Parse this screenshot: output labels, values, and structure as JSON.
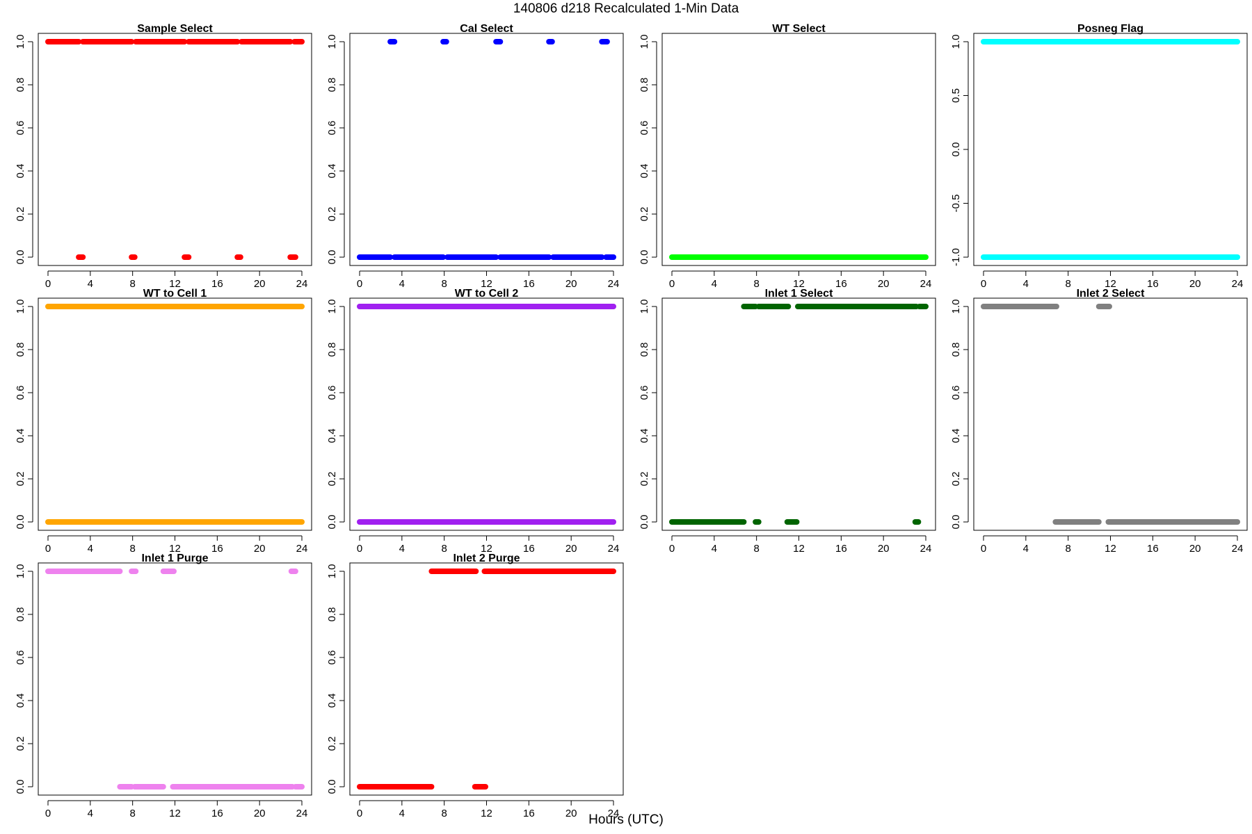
{
  "figure": {
    "title": "140806   d218   Recalculated 1-Min Data",
    "xlabel": "Hours (UTC)"
  },
  "chart_data": [
    {
      "type": "scatter",
      "title": "Sample Select",
      "color": "#FF0000",
      "xlim": [
        0,
        24
      ],
      "ylim": [
        0,
        1
      ],
      "xticks": [
        0,
        4,
        8,
        12,
        16,
        20,
        24
      ],
      "yticks": [
        0,
        0.2,
        0.4,
        0.6,
        0.8,
        1
      ],
      "ytick_labels": [
        "0.0",
        "0.2",
        "0.4",
        "0.6",
        "0.8",
        "1.0"
      ],
      "segments": [
        {
          "y": 1,
          "x": [
            0.0,
            2.9
          ]
        },
        {
          "y": 1,
          "x": [
            3.3,
            7.9
          ]
        },
        {
          "y": 1,
          "x": [
            8.3,
            12.9
          ]
        },
        {
          "y": 1,
          "x": [
            13.3,
            17.9
          ]
        },
        {
          "y": 1,
          "x": [
            18.3,
            22.9
          ]
        },
        {
          "y": 1,
          "x": [
            23.3,
            24.0
          ]
        },
        {
          "y": 0,
          "x": [
            2.9,
            3.3
          ]
        },
        {
          "y": 0,
          "x": [
            7.9,
            8.2
          ]
        },
        {
          "y": 0,
          "x": [
            12.9,
            13.3
          ]
        },
        {
          "y": 0,
          "x": [
            17.9,
            18.2
          ]
        },
        {
          "y": 0,
          "x": [
            22.9,
            23.4
          ]
        }
      ]
    },
    {
      "type": "scatter",
      "title": "Cal Select",
      "color": "#0000FF",
      "xlim": [
        0,
        24
      ],
      "ylim": [
        0,
        1
      ],
      "xticks": [
        0,
        4,
        8,
        12,
        16,
        20,
        24
      ],
      "yticks": [
        0,
        0.2,
        0.4,
        0.6,
        0.8,
        1
      ],
      "ytick_labels": [
        "0.0",
        "0.2",
        "0.4",
        "0.6",
        "0.8",
        "1.0"
      ],
      "segments": [
        {
          "y": 1,
          "x": [
            2.9,
            3.3
          ]
        },
        {
          "y": 1,
          "x": [
            7.9,
            8.2
          ]
        },
        {
          "y": 1,
          "x": [
            12.9,
            13.3
          ]
        },
        {
          "y": 1,
          "x": [
            17.9,
            18.2
          ]
        },
        {
          "y": 1,
          "x": [
            22.9,
            23.4
          ]
        },
        {
          "y": 0,
          "x": [
            0.0,
            2.9
          ]
        },
        {
          "y": 0,
          "x": [
            3.3,
            7.9
          ]
        },
        {
          "y": 0,
          "x": [
            8.3,
            12.9
          ]
        },
        {
          "y": 0,
          "x": [
            13.3,
            17.9
          ]
        },
        {
          "y": 0,
          "x": [
            18.3,
            22.9
          ]
        },
        {
          "y": 0,
          "x": [
            23.3,
            24.0
          ]
        }
      ]
    },
    {
      "type": "scatter",
      "title": "WT Select",
      "color": "#00FF00",
      "xlim": [
        0,
        24
      ],
      "ylim": [
        0,
        1
      ],
      "xticks": [
        0,
        4,
        8,
        12,
        16,
        20,
        24
      ],
      "yticks": [
        0,
        0.2,
        0.4,
        0.6,
        0.8,
        1
      ],
      "ytick_labels": [
        "0.0",
        "0.2",
        "0.4",
        "0.6",
        "0.8",
        "1.0"
      ],
      "segments": [
        {
          "y": 0,
          "x": [
            0.0,
            24.0
          ]
        }
      ]
    },
    {
      "type": "scatter",
      "title": "Posneg Flag",
      "color": "#00FFFF",
      "xlim": [
        0,
        24
      ],
      "ylim": [
        -1,
        1
      ],
      "xticks": [
        0,
        4,
        8,
        12,
        16,
        20,
        24
      ],
      "yticks": [
        -1,
        -0.5,
        0,
        0.5,
        1
      ],
      "ytick_labels": [
        "-1.0",
        "-0.5",
        "0.0",
        "0.5",
        "1.0"
      ],
      "segments": [
        {
          "y": 1,
          "x": [
            0.0,
            24.0
          ]
        },
        {
          "y": -1,
          "x": [
            0.0,
            24.0
          ]
        }
      ]
    },
    {
      "type": "scatter",
      "title": "WT to Cell 1",
      "color": "#FFA500",
      "xlim": [
        0,
        24
      ],
      "ylim": [
        0,
        1
      ],
      "xticks": [
        0,
        4,
        8,
        12,
        16,
        20,
        24
      ],
      "yticks": [
        0,
        0.2,
        0.4,
        0.6,
        0.8,
        1
      ],
      "ytick_labels": [
        "0.0",
        "0.2",
        "0.4",
        "0.6",
        "0.8",
        "1.0"
      ],
      "segments": [
        {
          "y": 1,
          "x": [
            0.0,
            24.0
          ]
        },
        {
          "y": 0,
          "x": [
            0.0,
            24.0
          ]
        }
      ]
    },
    {
      "type": "scatter",
      "title": "WT to Cell 2",
      "color": "#A020F0",
      "xlim": [
        0,
        24
      ],
      "ylim": [
        0,
        1
      ],
      "xticks": [
        0,
        4,
        8,
        12,
        16,
        20,
        24
      ],
      "yticks": [
        0,
        0.2,
        0.4,
        0.6,
        0.8,
        1
      ],
      "ytick_labels": [
        "0.0",
        "0.2",
        "0.4",
        "0.6",
        "0.8",
        "1.0"
      ],
      "segments": [
        {
          "y": 1,
          "x": [
            0.0,
            24.0
          ]
        },
        {
          "y": 0,
          "x": [
            0.0,
            24.0
          ]
        }
      ]
    },
    {
      "type": "scatter",
      "title": "Inlet 1 Select",
      "color": "#006400",
      "xlim": [
        0,
        24
      ],
      "ylim": [
        0,
        1
      ],
      "xticks": [
        0,
        4,
        8,
        12,
        16,
        20,
        24
      ],
      "yticks": [
        0,
        0.2,
        0.4,
        0.6,
        0.8,
        1
      ],
      "ytick_labels": [
        "0.0",
        "0.2",
        "0.4",
        "0.6",
        "0.8",
        "1.0"
      ],
      "segments": [
        {
          "y": 1,
          "x": [
            6.8,
            7.9
          ]
        },
        {
          "y": 1,
          "x": [
            8.2,
            11.0
          ]
        },
        {
          "y": 1,
          "x": [
            11.9,
            23.1
          ]
        },
        {
          "y": 1,
          "x": [
            23.4,
            24.0
          ]
        },
        {
          "y": 0,
          "x": [
            0.0,
            6.8
          ]
        },
        {
          "y": 0,
          "x": [
            7.9,
            8.2
          ]
        },
        {
          "y": 0,
          "x": [
            10.9,
            11.8
          ]
        },
        {
          "y": 0,
          "x": [
            23.0,
            23.3
          ]
        }
      ]
    },
    {
      "type": "scatter",
      "title": "Inlet 2 Select",
      "color": "#808080",
      "xlim": [
        0,
        24
      ],
      "ylim": [
        0,
        1
      ],
      "xticks": [
        0,
        4,
        8,
        12,
        16,
        20,
        24
      ],
      "yticks": [
        0,
        0.2,
        0.4,
        0.6,
        0.8,
        1
      ],
      "ytick_labels": [
        "0.0",
        "0.2",
        "0.4",
        "0.6",
        "0.8",
        "1.0"
      ],
      "segments": [
        {
          "y": 1,
          "x": [
            0.0,
            6.9
          ]
        },
        {
          "y": 1,
          "x": [
            10.9,
            11.9
          ]
        },
        {
          "y": 0,
          "x": [
            6.8,
            10.9
          ]
        },
        {
          "y": 0,
          "x": [
            11.8,
            24.0
          ]
        }
      ]
    },
    {
      "type": "scatter",
      "title": "Inlet 1 Purge",
      "color": "#EE82EE",
      "xlim": [
        0,
        24
      ],
      "ylim": [
        0,
        1
      ],
      "xticks": [
        0,
        4,
        8,
        12,
        16,
        20,
        24
      ],
      "yticks": [
        0,
        0.2,
        0.4,
        0.6,
        0.8,
        1
      ],
      "ytick_labels": [
        "0.0",
        "0.2",
        "0.4",
        "0.6",
        "0.8",
        "1.0"
      ],
      "segments": [
        {
          "y": 1,
          "x": [
            0.0,
            6.8
          ]
        },
        {
          "y": 1,
          "x": [
            7.9,
            8.3
          ]
        },
        {
          "y": 1,
          "x": [
            10.9,
            11.9
          ]
        },
        {
          "y": 1,
          "x": [
            23.0,
            23.4
          ]
        },
        {
          "y": 0,
          "x": [
            6.8,
            7.9
          ]
        },
        {
          "y": 0,
          "x": [
            8.2,
            10.9
          ]
        },
        {
          "y": 0,
          "x": [
            11.8,
            23.1
          ]
        },
        {
          "y": 0,
          "x": [
            23.4,
            24.0
          ]
        }
      ]
    },
    {
      "type": "scatter",
      "title": "Inlet 2 Purge",
      "color": "#FF0000",
      "xlim": [
        0,
        24
      ],
      "ylim": [
        0,
        1
      ],
      "xticks": [
        0,
        4,
        8,
        12,
        16,
        20,
        24
      ],
      "yticks": [
        0,
        0.2,
        0.4,
        0.6,
        0.8,
        1
      ],
      "ytick_labels": [
        "0.0",
        "0.2",
        "0.4",
        "0.6",
        "0.8",
        "1.0"
      ],
      "segments": [
        {
          "y": 1,
          "x": [
            6.8,
            11.0
          ]
        },
        {
          "y": 1,
          "x": [
            11.8,
            24.0
          ]
        },
        {
          "y": 0,
          "x": [
            0.0,
            6.8
          ]
        },
        {
          "y": 0,
          "x": [
            10.9,
            11.9
          ]
        }
      ]
    }
  ]
}
